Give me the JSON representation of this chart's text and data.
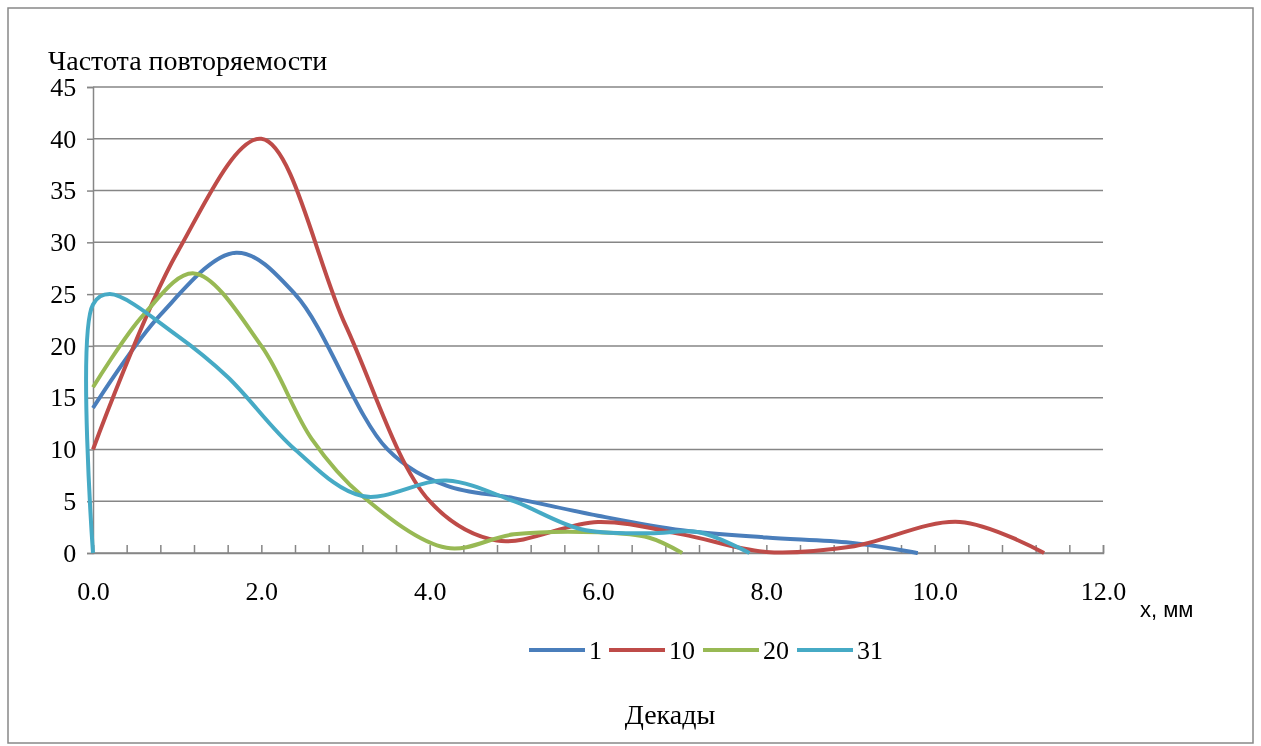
{
  "chart_data": {
    "type": "line",
    "ylabel": "Частота повторяемости",
    "xlabel": "x, мм",
    "legend_title": "Декады",
    "xlim": [
      0,
      12
    ],
    "ylim": [
      0,
      45
    ],
    "xticks": [
      {
        "value": 0,
        "label": "0.0"
      },
      {
        "value": 0.4,
        "label": null
      },
      {
        "value": 0.8,
        "label": null
      },
      {
        "value": 1.2,
        "label": null
      },
      {
        "value": 1.6,
        "label": null
      },
      {
        "value": 2,
        "label": "2.0"
      },
      {
        "value": 2.4,
        "label": null
      },
      {
        "value": 2.8,
        "label": null
      },
      {
        "value": 3.2,
        "label": null
      },
      {
        "value": 3.6,
        "label": null
      },
      {
        "value": 4,
        "label": "4.0"
      },
      {
        "value": 4.4,
        "label": null
      },
      {
        "value": 4.8,
        "label": null
      },
      {
        "value": 5.2,
        "label": null
      },
      {
        "value": 5.6,
        "label": null
      },
      {
        "value": 6,
        "label": "6.0"
      },
      {
        "value": 6.4,
        "label": null
      },
      {
        "value": 6.8,
        "label": null
      },
      {
        "value": 7.2,
        "label": null
      },
      {
        "value": 7.6,
        "label": null
      },
      {
        "value": 8,
        "label": "8.0"
      },
      {
        "value": 8.4,
        "label": null
      },
      {
        "value": 8.8,
        "label": null
      },
      {
        "value": 9.2,
        "label": null
      },
      {
        "value": 9.6,
        "label": null
      },
      {
        "value": 10,
        "label": "10.0"
      },
      {
        "value": 10.4,
        "label": null
      },
      {
        "value": 10.8,
        "label": null
      },
      {
        "value": 11.2,
        "label": null
      },
      {
        "value": 11.6,
        "label": null
      },
      {
        "value": 12,
        "label": "12.0"
      }
    ],
    "yticks": [
      0,
      5,
      10,
      15,
      20,
      25,
      30,
      35,
      40,
      45
    ],
    "grid": "y",
    "legend": "bottom",
    "marker": "none",
    "line_style": "solid",
    "series": [
      {
        "name": "1",
        "color": "#4a7ebb",
        "x": [
          0,
          0.8,
          1.7,
          2.4,
          3.5,
          4.2,
          5.0,
          6.0,
          7.0,
          8.0,
          9.0,
          9.8
        ],
        "values": [
          14,
          23,
          29,
          25,
          10,
          6.5,
          5.3,
          3.6,
          2.2,
          1.5,
          1.0,
          0
        ]
      },
      {
        "name": "10",
        "color": "#be4b48",
        "x": [
          0,
          1.0,
          2.0,
          3.0,
          4.0,
          4.8,
          6.0,
          7.0,
          8.0,
          9.0,
          10.3,
          11.3
        ],
        "values": [
          10,
          29,
          40,
          22,
          5,
          1.2,
          3,
          1.8,
          0.1,
          0.6,
          3,
          0
        ]
      },
      {
        "name": "20",
        "color": "#98b954",
        "x": [
          0,
          0.6,
          1.2,
          2.0,
          2.6,
          3.2,
          4.2,
          5.0,
          6.0,
          6.6,
          7.0
        ],
        "values": [
          16,
          23,
          27,
          20,
          11,
          5.5,
          0.5,
          1.8,
          2,
          1.5,
          0
        ]
      },
      {
        "name": "31",
        "color": "#46aac5",
        "x": [
          0,
          0,
          0.2,
          1.0,
          1.6,
          2.4,
          3.2,
          4.2,
          5.0,
          5.8,
          6.6,
          7.2,
          7.8
        ],
        "values": [
          0,
          24,
          25,
          21,
          17,
          10,
          5.5,
          7,
          5,
          2.3,
          1.9,
          2,
          0
        ]
      }
    ]
  }
}
